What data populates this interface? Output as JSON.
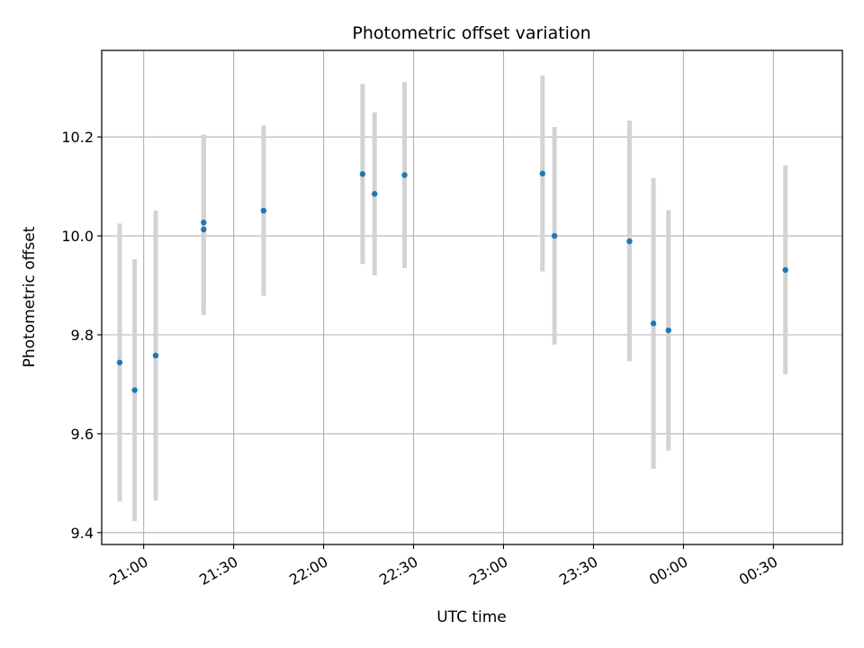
{
  "chart_data": {
    "type": "scatter",
    "title": "Photometric offset variation",
    "xlabel": "UTC time",
    "ylabel": "Photometric offset",
    "grid": true,
    "x_type": "time",
    "x_range": [
      "20:46",
      "00:53"
    ],
    "ylim": [
      9.376,
      10.375
    ],
    "x_ticks": [
      "21:00",
      "21:30",
      "22:00",
      "22:30",
      "23:00",
      "23:30",
      "00:00",
      "00:30"
    ],
    "y_ticks": [
      "9.4",
      "9.6",
      "9.8",
      "10.0",
      "10.2"
    ],
    "colors": {
      "point": "#1f77b4",
      "errorbar": "#d3d3d3",
      "grid": "#b0b0b0"
    },
    "series": [
      {
        "points": [
          {
            "x": "20:52",
            "y": 9.744,
            "ylow": 9.463,
            "yhigh": 10.025
          },
          {
            "x": "20:57",
            "y": 9.688,
            "ylow": 9.423,
            "yhigh": 9.953
          },
          {
            "x": "21:04",
            "y": 9.758,
            "ylow": 9.465,
            "yhigh": 10.051
          },
          {
            "x": "21:20",
            "y": 10.013,
            "ylow": 9.85,
            "yhigh": 10.195
          },
          {
            "x": "21:20",
            "y": 10.027,
            "ylow": 9.84,
            "yhigh": 10.205
          },
          {
            "x": "21:40",
            "y": 10.051,
            "ylow": 9.879,
            "yhigh": 10.223
          },
          {
            "x": "22:13",
            "y": 10.125,
            "ylow": 9.943,
            "yhigh": 10.307
          },
          {
            "x": "22:17",
            "y": 10.085,
            "ylow": 9.92,
            "yhigh": 10.25
          },
          {
            "x": "22:27",
            "y": 10.123,
            "ylow": 9.935,
            "yhigh": 10.311
          },
          {
            "x": "23:13",
            "y": 10.126,
            "ylow": 9.928,
            "yhigh": 10.324
          },
          {
            "x": "23:17",
            "y": 10.0,
            "ylow": 9.78,
            "yhigh": 10.22
          },
          {
            "x": "23:42",
            "y": 9.989,
            "ylow": 9.746,
            "yhigh": 10.233
          },
          {
            "x": "23:50",
            "y": 9.823,
            "ylow": 9.529,
            "yhigh": 10.117
          },
          {
            "x": "23:55",
            "y": 9.809,
            "ylow": 9.566,
            "yhigh": 10.052
          },
          {
            "x": "00:34",
            "y": 9.931,
            "ylow": 9.72,
            "yhigh": 10.143
          }
        ]
      }
    ]
  }
}
